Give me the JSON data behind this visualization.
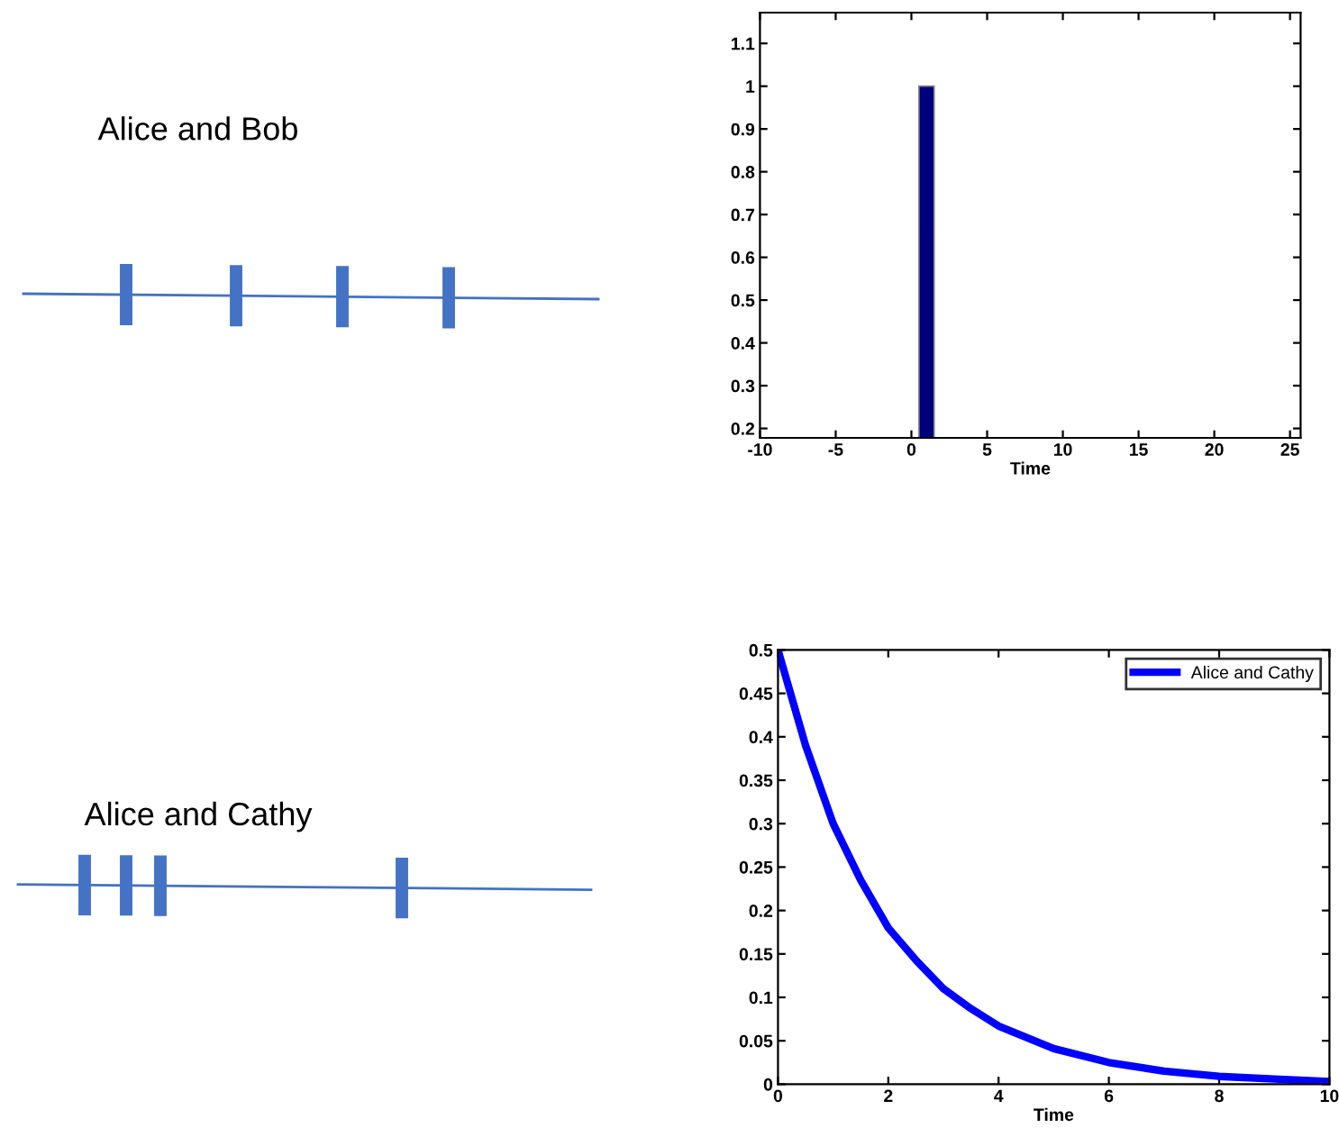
{
  "chart_data": [
    {
      "type": "other",
      "annotations": [
        "Alice and Bob"
      ]
    },
    {
      "type": "histogram",
      "bins": [
        0.5,
        1.5
      ],
      "values": [
        1
      ],
      "color": "#00007f",
      "xlabel": "Time",
      "xlim": [
        -10,
        25.7
      ],
      "xticks": [
        -10,
        -5,
        0,
        5,
        10,
        15,
        20,
        25
      ],
      "ylim": [
        0.178,
        1.172
      ],
      "yticks": [
        0.2,
        0.3,
        0.4,
        0.5,
        0.6,
        0.7,
        0.8,
        0.9,
        1,
        1.1
      ]
    },
    {
      "type": "other",
      "annotations": [
        "Alice and Cathy"
      ]
    },
    {
      "type": "line",
      "x": [
        0,
        0.5,
        1,
        1.5,
        2,
        2.5,
        3,
        3.5,
        4,
        5,
        6,
        7,
        8,
        9,
        10
      ],
      "series": [
        {
          "name": "Alice and Cathy",
          "color": "#0000ff",
          "values": [
            0.5,
            0.39,
            0.3,
            0.235,
            0.18,
            0.143,
            0.11,
            0.087,
            0.067,
            0.041,
            0.025,
            0.015,
            0.009,
            0.006,
            0.003
          ]
        }
      ],
      "xlabel": "Time",
      "xlim": [
        0,
        10
      ],
      "xticks": [
        0,
        2,
        4,
        6,
        8,
        10
      ],
      "ylim": [
        0,
        0.5
      ],
      "yticks": [
        0,
        0.05,
        0.1,
        0.15,
        0.2,
        0.25,
        0.3,
        0.35,
        0.4,
        0.45,
        0.5
      ],
      "legend": "top right"
    }
  ]
}
